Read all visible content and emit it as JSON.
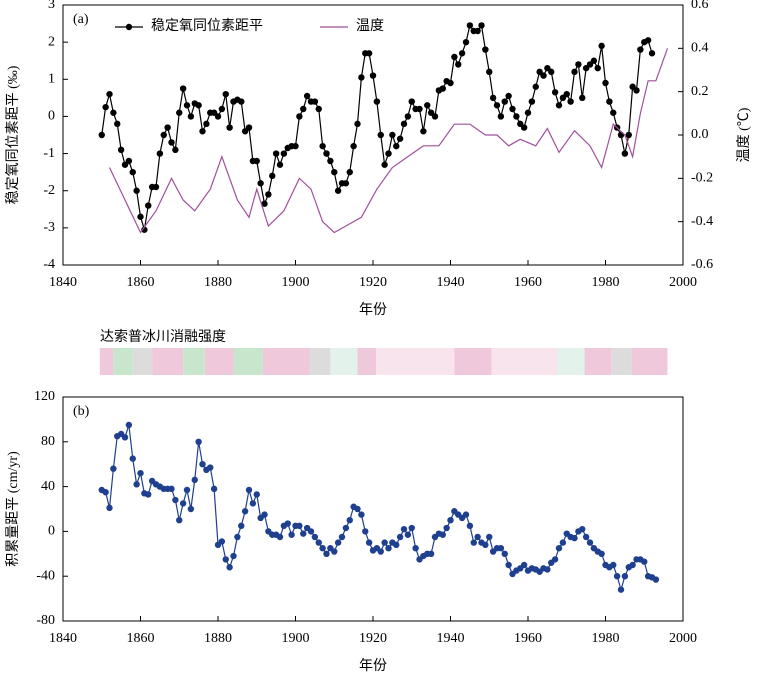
{
  "chart_data": [
    {
      "type": "line",
      "panel": "(a)",
      "xlabel": "年份",
      "ylabel": "稳定氧同位素距平 (‰)",
      "y2label": "温度 (℃)",
      "xlim": [
        1840,
        2000
      ],
      "xticks": [
        1840,
        1860,
        1880,
        1900,
        1920,
        1940,
        1960,
        1980,
        2000
      ],
      "ylim": [
        -4,
        3
      ],
      "yticks": [
        -4,
        -3,
        -2,
        -1,
        0,
        1,
        2,
        3
      ],
      "y2lim": [
        -0.6,
        0.6
      ],
      "y2ticks": [
        -0.6,
        -0.4,
        -0.2,
        {
          "value": 0,
          "label": "0.0"
        },
        0.2,
        0.4,
        0.6
      ],
      "legend": "top",
      "series": [
        {
          "name": "稳定氧同位素距平",
          "color": "#000000",
          "marker": true,
          "x": [
            1850,
            1851,
            1852,
            1853,
            1854,
            1855,
            1856,
            1857,
            1858,
            1859,
            1860,
            1861,
            1862,
            1863,
            1864,
            1865,
            1866,
            1867,
            1868,
            1869,
            1870,
            1871,
            1872,
            1873,
            1874,
            1875,
            1876,
            1877,
            1878,
            1879,
            1880,
            1881,
            1882,
            1883,
            1884,
            1885,
            1886,
            1887,
            1888,
            1889,
            1890,
            1891,
            1892,
            1893,
            1894,
            1895,
            1896,
            1897,
            1898,
            1899,
            1900,
            1901,
            1902,
            1903,
            1904,
            1905,
            1906,
            1907,
            1908,
            1909,
            1910,
            1911,
            1912,
            1913,
            1914,
            1915,
            1916,
            1917,
            1918,
            1919,
            1920,
            1921,
            1922,
            1923,
            1924,
            1925,
            1926,
            1927,
            1928,
            1929,
            1930,
            1931,
            1932,
            1933,
            1934,
            1935,
            1936,
            1937,
            1938,
            1939,
            1940,
            1941,
            1942,
            1943,
            1944,
            1945,
            1946,
            1947,
            1948,
            1949,
            1950,
            1951,
            1952,
            1953,
            1954,
            1955,
            1956,
            1957,
            1958,
            1959,
            1960,
            1961,
            1962,
            1963,
            1964,
            1965,
            1966,
            1967,
            1968,
            1969,
            1970,
            1971,
            1972,
            1973,
            1974,
            1975,
            1976,
            1977,
            1978,
            1979,
            1980,
            1981,
            1982,
            1983,
            1984,
            1985,
            1986,
            1987,
            1988,
            1989,
            1990,
            1991,
            1992
          ],
          "values": [
            -0.5,
            0.25,
            0.6,
            0.1,
            -0.2,
            -0.9,
            -1.3,
            -1.2,
            -1.5,
            -2.0,
            -2.7,
            -3.05,
            -2.4,
            -1.9,
            -1.9,
            -1.0,
            -0.5,
            -0.3,
            -0.7,
            -0.9,
            0.1,
            0.75,
            0.3,
            0.0,
            0.35,
            0.3,
            -0.4,
            -0.2,
            0.1,
            0.1,
            0.0,
            0.2,
            0.6,
            -0.3,
            0.4,
            0.45,
            0.4,
            -0.4,
            -0.3,
            -1.2,
            -1.2,
            -1.8,
            -2.35,
            -2.1,
            -1.6,
            -1.0,
            -1.3,
            -1.0,
            -0.85,
            -0.8,
            -0.8,
            0.0,
            0.2,
            0.55,
            0.4,
            0.4,
            0.2,
            -0.8,
            -1.0,
            -1.2,
            -1.5,
            -2.0,
            -1.8,
            -1.8,
            -1.5,
            -0.8,
            -0.2,
            1.05,
            1.7,
            1.7,
            1.1,
            0.4,
            -0.5,
            -1.3,
            -1.0,
            -0.5,
            -0.8,
            -0.6,
            -0.2,
            0.0,
            0.4,
            0.2,
            0.2,
            -0.4,
            0.3,
            0.1,
            0.0,
            0.7,
            0.75,
            0.95,
            0.9,
            1.6,
            1.4,
            1.7,
            2.0,
            2.45,
            2.3,
            2.3,
            2.45,
            1.8,
            1.2,
            0.5,
            0.3,
            0.0,
            0.4,
            0.55,
            0.2,
            0.0,
            -0.2,
            -0.3,
            0.1,
            0.4,
            0.8,
            1.2,
            1.1,
            1.3,
            1.2,
            0.65,
            0.3,
            0.5,
            0.6,
            0.4,
            1.2,
            1.4,
            0.5,
            1.3,
            1.4,
            1.5,
            1.3,
            1.9,
            0.9,
            0.4,
            0.1,
            -0.3,
            -0.5,
            -1.0,
            -0.5,
            0.8,
            0.7,
            1.8,
            2.0,
            2.05,
            1.7
          ]
        },
        {
          "name": "温度",
          "color": "#a0509a",
          "axis": "y2",
          "marker": false,
          "x": [
            1852,
            1856,
            1860,
            1864,
            1868,
            1871,
            1874,
            1878,
            1881,
            1885,
            1888,
            1890,
            1893,
            1897,
            1901,
            1904,
            1907,
            1910,
            1913,
            1917,
            1921,
            1925,
            1929,
            1933,
            1937,
            1941,
            1945,
            1949,
            1952,
            1955,
            1958,
            1962,
            1965,
            1968,
            1972,
            1976,
            1979,
            1982,
            1985,
            1987,
            1989,
            1991,
            1993,
            1996
          ],
          "values": [
            -0.15,
            -0.3,
            -0.45,
            -0.35,
            -0.2,
            -0.3,
            -0.35,
            -0.25,
            -0.1,
            -0.3,
            -0.38,
            -0.25,
            -0.42,
            -0.35,
            -0.2,
            -0.25,
            -0.4,
            -0.45,
            -0.42,
            -0.38,
            -0.25,
            -0.15,
            -0.1,
            -0.05,
            -0.05,
            0.05,
            0.05,
            0.0,
            0.0,
            -0.05,
            -0.02,
            -0.05,
            0.03,
            -0.08,
            0.02,
            -0.05,
            -0.15,
            0.05,
            0.0,
            -0.1,
            0.1,
            0.25,
            0.25,
            0.4
          ]
        }
      ]
    },
    {
      "type": "line",
      "panel": "(b)",
      "xlabel": "年份",
      "ylabel": "积累量距平 (cm/yr)",
      "xlim": [
        1840,
        2000
      ],
      "xticks": [
        1840,
        1860,
        1880,
        1900,
        1920,
        1940,
        1960,
        1980,
        2000
      ],
      "ylim": [
        -80,
        120
      ],
      "yticks": [
        -80,
        -40,
        0,
        40,
        80,
        120
      ],
      "series": [
        {
          "color": "#1f3f8f",
          "marker": true,
          "x": [
            1850,
            1851,
            1852,
            1853,
            1854,
            1855,
            1856,
            1857,
            1858,
            1859,
            1860,
            1861,
            1862,
            1863,
            1864,
            1865,
            1866,
            1867,
            1868,
            1869,
            1870,
            1871,
            1872,
            1873,
            1874,
            1875,
            1876,
            1877,
            1878,
            1879,
            1880,
            1881,
            1882,
            1883,
            1884,
            1885,
            1886,
            1887,
            1888,
            1889,
            1890,
            1891,
            1892,
            1893,
            1894,
            1895,
            1896,
            1897,
            1898,
            1899,
            1900,
            1901,
            1902,
            1903,
            1904,
            1905,
            1906,
            1907,
            1908,
            1909,
            1910,
            1911,
            1912,
            1913,
            1914,
            1915,
            1916,
            1917,
            1918,
            1919,
            1920,
            1921,
            1922,
            1923,
            1924,
            1925,
            1926,
            1927,
            1928,
            1929,
            1930,
            1931,
            1932,
            1933,
            1934,
            1935,
            1936,
            1937,
            1938,
            1939,
            1940,
            1941,
            1942,
            1943,
            1944,
            1945,
            1946,
            1947,
            1948,
            1949,
            1950,
            1951,
            1952,
            1953,
            1954,
            1955,
            1956,
            1957,
            1958,
            1959,
            1960,
            1961,
            1962,
            1963,
            1964,
            1965,
            1966,
            1967,
            1968,
            1969,
            1970,
            1971,
            1972,
            1973,
            1974,
            1975,
            1976,
            1977,
            1978,
            1979,
            1980,
            1981,
            1982,
            1983,
            1984,
            1985,
            1986,
            1987,
            1988,
            1989,
            1990,
            1991,
            1992,
            1993
          ],
          "values": [
            37,
            35,
            21,
            56,
            85,
            87,
            84,
            95,
            65,
            42,
            52,
            34,
            33,
            45,
            42,
            40,
            38,
            38,
            38,
            28,
            10,
            25,
            37,
            20,
            46,
            80,
            60,
            55,
            57,
            38,
            -12,
            -9,
            -25,
            -32,
            -22,
            -5,
            5,
            18,
            37,
            25,
            33,
            12,
            15,
            0,
            -3,
            -3,
            -5,
            5,
            7,
            -3,
            5,
            5,
            -2,
            3,
            0,
            -5,
            -10,
            -15,
            -20,
            -15,
            -18,
            -10,
            -5,
            3,
            10,
            22,
            20,
            15,
            0,
            -10,
            -17,
            -15,
            -18,
            -10,
            -15,
            -10,
            -12,
            -5,
            2,
            -3,
            3,
            -15,
            -25,
            -22,
            -20,
            -20,
            -5,
            -2,
            -3,
            3,
            10,
            18,
            15,
            12,
            15,
            5,
            -10,
            -5,
            -10,
            -12,
            -5,
            -18,
            -15,
            -15,
            -20,
            -30,
            -38,
            -35,
            -33,
            -30,
            -35,
            -33,
            -34,
            -36,
            -33,
            -34,
            -28,
            -25,
            -15,
            -10,
            -2,
            -5,
            -6,
            0,
            2,
            -5,
            -10,
            -15,
            -18,
            -20,
            -30,
            -32,
            -30,
            -40,
            -52,
            -40,
            -32,
            -30,
            -25,
            -25,
            -27,
            -40,
            -41,
            -43
          ]
        }
      ]
    }
  ],
  "band": {
    "title": "达索普冰川消融强度",
    "segments": [
      {
        "start": 1849.5,
        "end": 1853,
        "color": "#f0c8dc"
      },
      {
        "start": 1853,
        "end": 1858,
        "color": "#c8e6cc"
      },
      {
        "start": 1858,
        "end": 1863,
        "color": "#dcdcdc"
      },
      {
        "start": 1863,
        "end": 1871,
        "color": "#f0c8dc"
      },
      {
        "start": 1871,
        "end": 1876.6,
        "color": "#c8e6cc"
      },
      {
        "start": 1876.6,
        "end": 1884,
        "color": "#f0c8dc"
      },
      {
        "start": 1884,
        "end": 1891.6,
        "color": "#c8e6cc"
      },
      {
        "start": 1891.6,
        "end": 1903.7,
        "color": "#f0c8dc"
      },
      {
        "start": 1903.7,
        "end": 1909,
        "color": "#dcdcdc"
      },
      {
        "start": 1909,
        "end": 1916,
        "color": "#e4f2ec"
      },
      {
        "start": 1916,
        "end": 1920.8,
        "color": "#f0c8dc"
      },
      {
        "start": 1920.8,
        "end": 1941,
        "color": "#f8e4ec"
      },
      {
        "start": 1941,
        "end": 1950.6,
        "color": "#f0c8dc"
      },
      {
        "start": 1950.6,
        "end": 1967.6,
        "color": "#f8e4ec"
      },
      {
        "start": 1967.6,
        "end": 1974.6,
        "color": "#e4f2ec"
      },
      {
        "start": 1974.6,
        "end": 1981.6,
        "color": "#f0c8dc"
      },
      {
        "start": 1981.6,
        "end": 1986.8,
        "color": "#dcdcdc"
      },
      {
        "start": 1986.8,
        "end": 1996,
        "color": "#f0c8dc"
      }
    ]
  }
}
